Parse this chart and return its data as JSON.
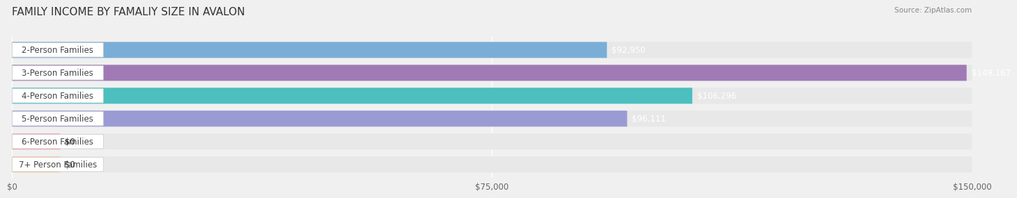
{
  "title": "FAMILY INCOME BY FAMALIY SIZE IN AVALON",
  "source": "Source: ZipAtlas.com",
  "categories": [
    "2-Person Families",
    "3-Person Families",
    "4-Person Families",
    "5-Person Families",
    "6-Person Families",
    "7+ Person Families"
  ],
  "values": [
    92950,
    149167,
    106296,
    96111,
    0,
    0
  ],
  "bar_colors": [
    "#7aaed6",
    "#a07ab5",
    "#4dbfbf",
    "#9b9bd4",
    "#f4a0b0",
    "#f5c89a"
  ],
  "label_colors": [
    "white",
    "white",
    "white",
    "white",
    "#333333",
    "#333333"
  ],
  "xlim": [
    0,
    150000
  ],
  "xticks": [
    0,
    75000,
    150000
  ],
  "xtick_labels": [
    "$0",
    "$75,000",
    "$150,000"
  ],
  "background_color": "#f0f0f0",
  "bar_background": "#e8e8e8",
  "bar_height": 0.68,
  "title_fontsize": 11,
  "label_fontsize": 8.5,
  "value_fontsize": 8.5,
  "axis_fontsize": 8.5
}
